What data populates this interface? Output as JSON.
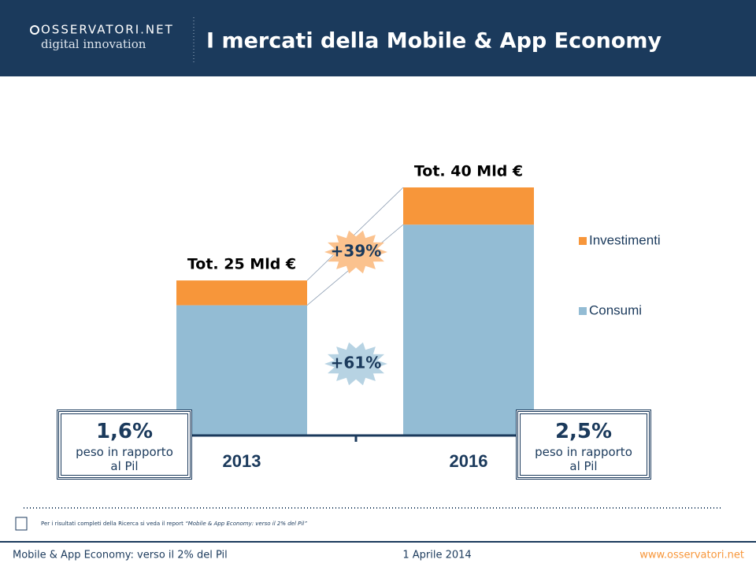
{
  "header": {
    "logo_name": "OSSERVATORI.NET",
    "logo_tagline": "digital innovation",
    "title": "I mercati della Mobile & App Economy"
  },
  "chart_data": {
    "type": "stacked_bar",
    "categories": [
      "2013",
      "2016"
    ],
    "series": [
      {
        "name": "Consumi",
        "color": "#93bcd4",
        "values": [
          21,
          34
        ]
      },
      {
        "name": "Investimenti",
        "color": "#f7963a",
        "values": [
          4,
          6
        ]
      }
    ],
    "total_labels": [
      "Tot. 25 Mld €",
      "Tot. 40 Mld €"
    ],
    "growth_labels": [
      "+39%",
      "+61%"
    ],
    "notes": [
      {
        "share": "1,6%",
        "caption": "peso in rapporto al Pil"
      },
      {
        "share": "2,5%",
        "caption": "peso in rapporto al Pil"
      }
    ]
  },
  "footnote": {
    "text": "Per i risultati completi della Ricerca si veda il report",
    "report": "“Mobile & App Economy: verso il 2% del Pil”"
  },
  "footer": {
    "left": "Mobile & App Economy: verso il 2% del Pil",
    "date": "1 Aprile 2014",
    "site": "www.osservatori.net"
  }
}
